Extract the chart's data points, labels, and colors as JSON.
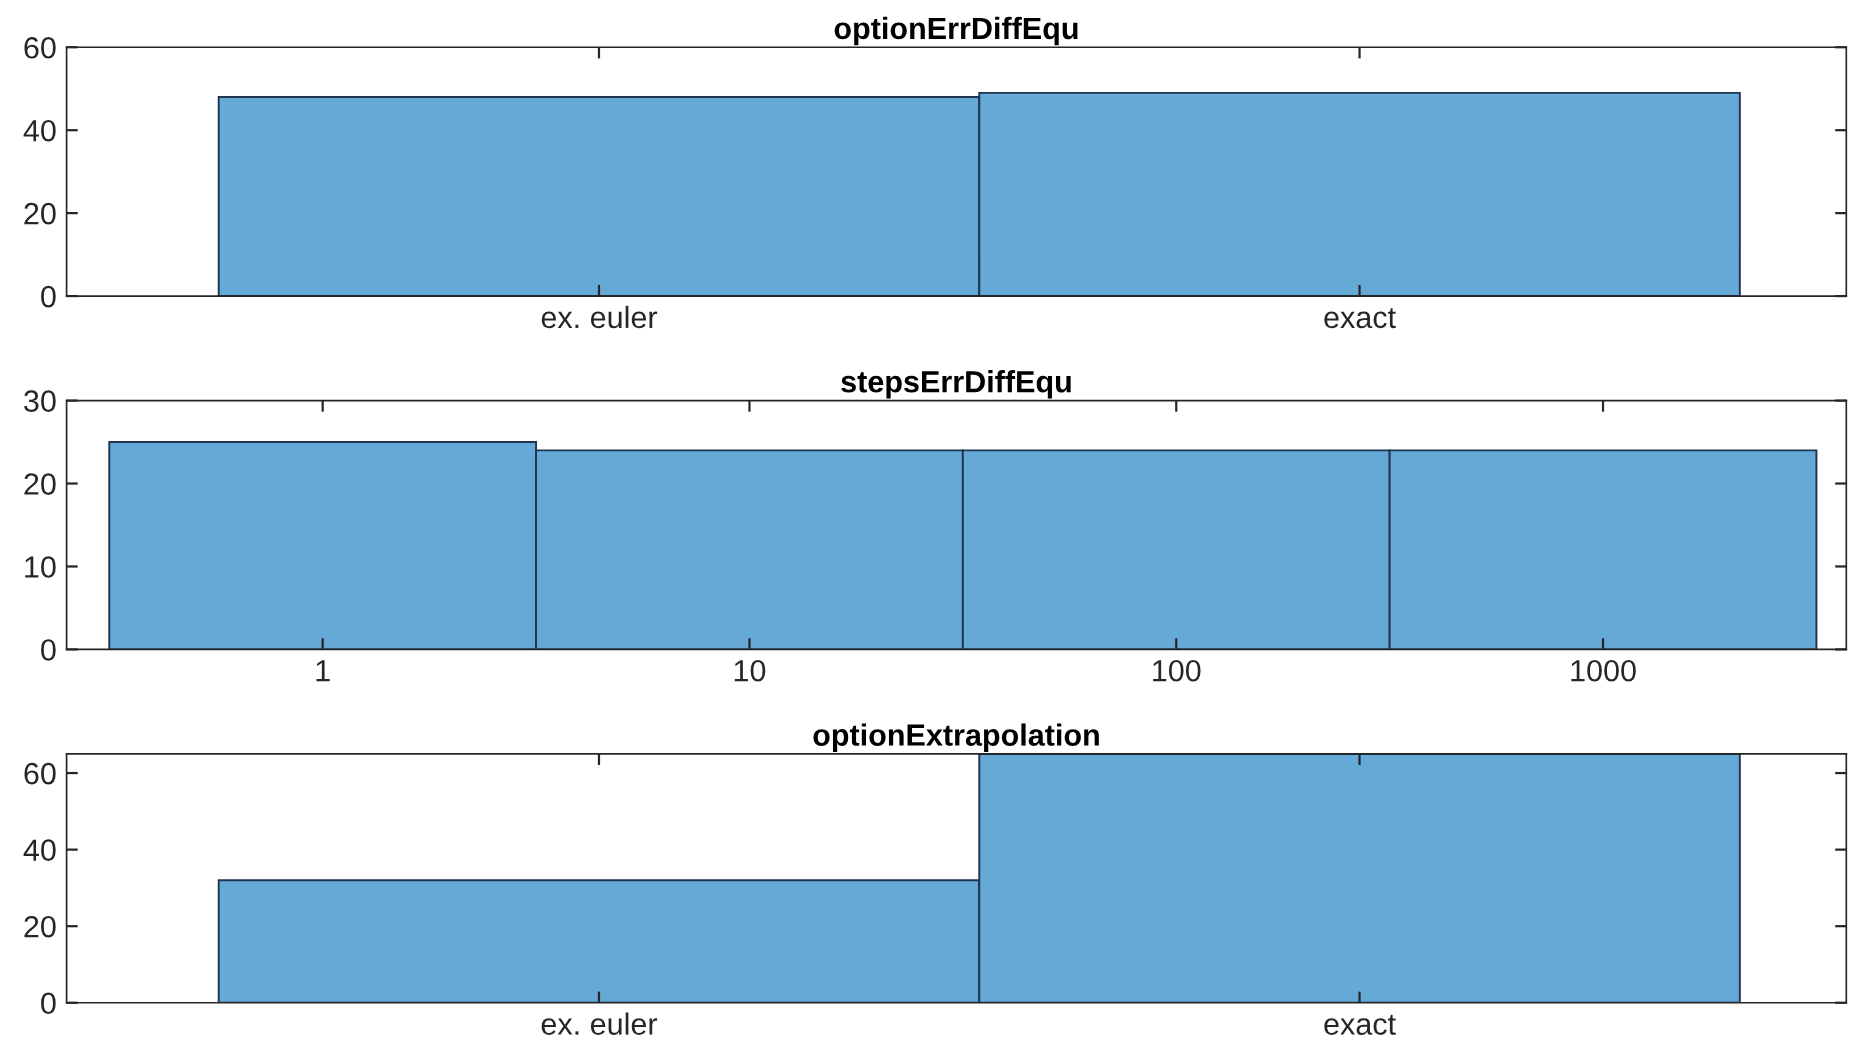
{
  "chart_data": [
    {
      "type": "bar",
      "title": "optionErrDiffEqu",
      "categories": [
        "ex. euler",
        "exact"
      ],
      "values": [
        48,
        49
      ],
      "color": "#65a9d7",
      "ylim": [
        0,
        60
      ],
      "yticks": [
        0,
        20,
        40,
        60
      ]
    },
    {
      "type": "bar",
      "title": "stepsErrDiffEqu",
      "categories": [
        "1",
        "10",
        "100",
        "1000"
      ],
      "values": [
        25,
        24,
        24,
        24
      ],
      "color": "#65a9d7",
      "ylim": [
        0,
        30
      ],
      "yticks": [
        0,
        10,
        20,
        30
      ]
    },
    {
      "type": "bar",
      "title": "optionExtrapolation",
      "categories": [
        "ex. euler",
        "exact"
      ],
      "values": [
        32,
        65
      ],
      "color": "#65a9d7",
      "ylim": [
        0,
        65
      ],
      "yticks": [
        0,
        20,
        40,
        60
      ]
    }
  ]
}
